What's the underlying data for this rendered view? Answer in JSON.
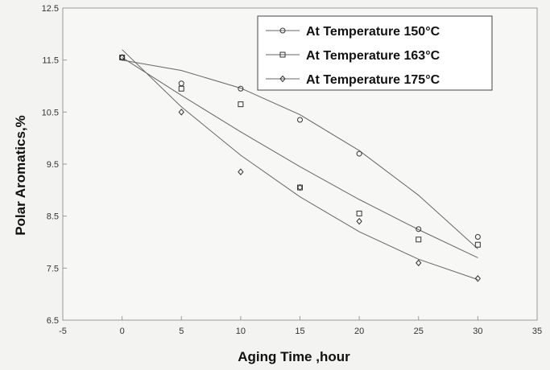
{
  "chart_data": {
    "type": "scatter",
    "xlabel": "Aging Time ,hour",
    "ylabel": "Polar Aromatics,%",
    "xlim": [
      -5,
      35
    ],
    "ylim": [
      6.5,
      12.5
    ],
    "x_ticks": [
      "-5",
      "0",
      "5",
      "10",
      "15",
      "20",
      "25",
      "30",
      "35"
    ],
    "y_ticks": [
      "6.5",
      "7.5",
      "8.5",
      "9.5",
      "10.5",
      "11.5",
      "12.5"
    ],
    "legend_position": "top-right",
    "grid": false,
    "series": [
      {
        "name": "At Temperature 150°C",
        "marker": "circle",
        "x": [
          0,
          5,
          10,
          15,
          20,
          25,
          30
        ],
        "y": [
          11.55,
          11.05,
          10.95,
          10.35,
          9.7,
          8.25,
          8.1
        ],
        "fit": [
          11.5,
          11.3,
          10.96,
          10.45,
          9.76,
          8.9,
          7.87
        ]
      },
      {
        "name": "At Temperature 163°C",
        "marker": "square",
        "x": [
          0,
          5,
          10,
          15,
          20,
          25,
          30
        ],
        "y": [
          11.55,
          10.95,
          10.65,
          9.05,
          8.55,
          8.05,
          7.95
        ],
        "fit": [
          11.55,
          10.82,
          10.12,
          9.45,
          8.82,
          8.24,
          7.7
        ]
      },
      {
        "name": "At Temperature 175°C",
        "marker": "diamond",
        "x": [
          0,
          5,
          10,
          15,
          20,
          25,
          30
        ],
        "y": [
          11.55,
          10.5,
          9.35,
          9.05,
          8.4,
          7.6,
          7.3
        ],
        "fit": [
          11.7,
          10.6,
          9.67,
          8.87,
          8.2,
          7.67,
          7.28
        ]
      }
    ]
  }
}
